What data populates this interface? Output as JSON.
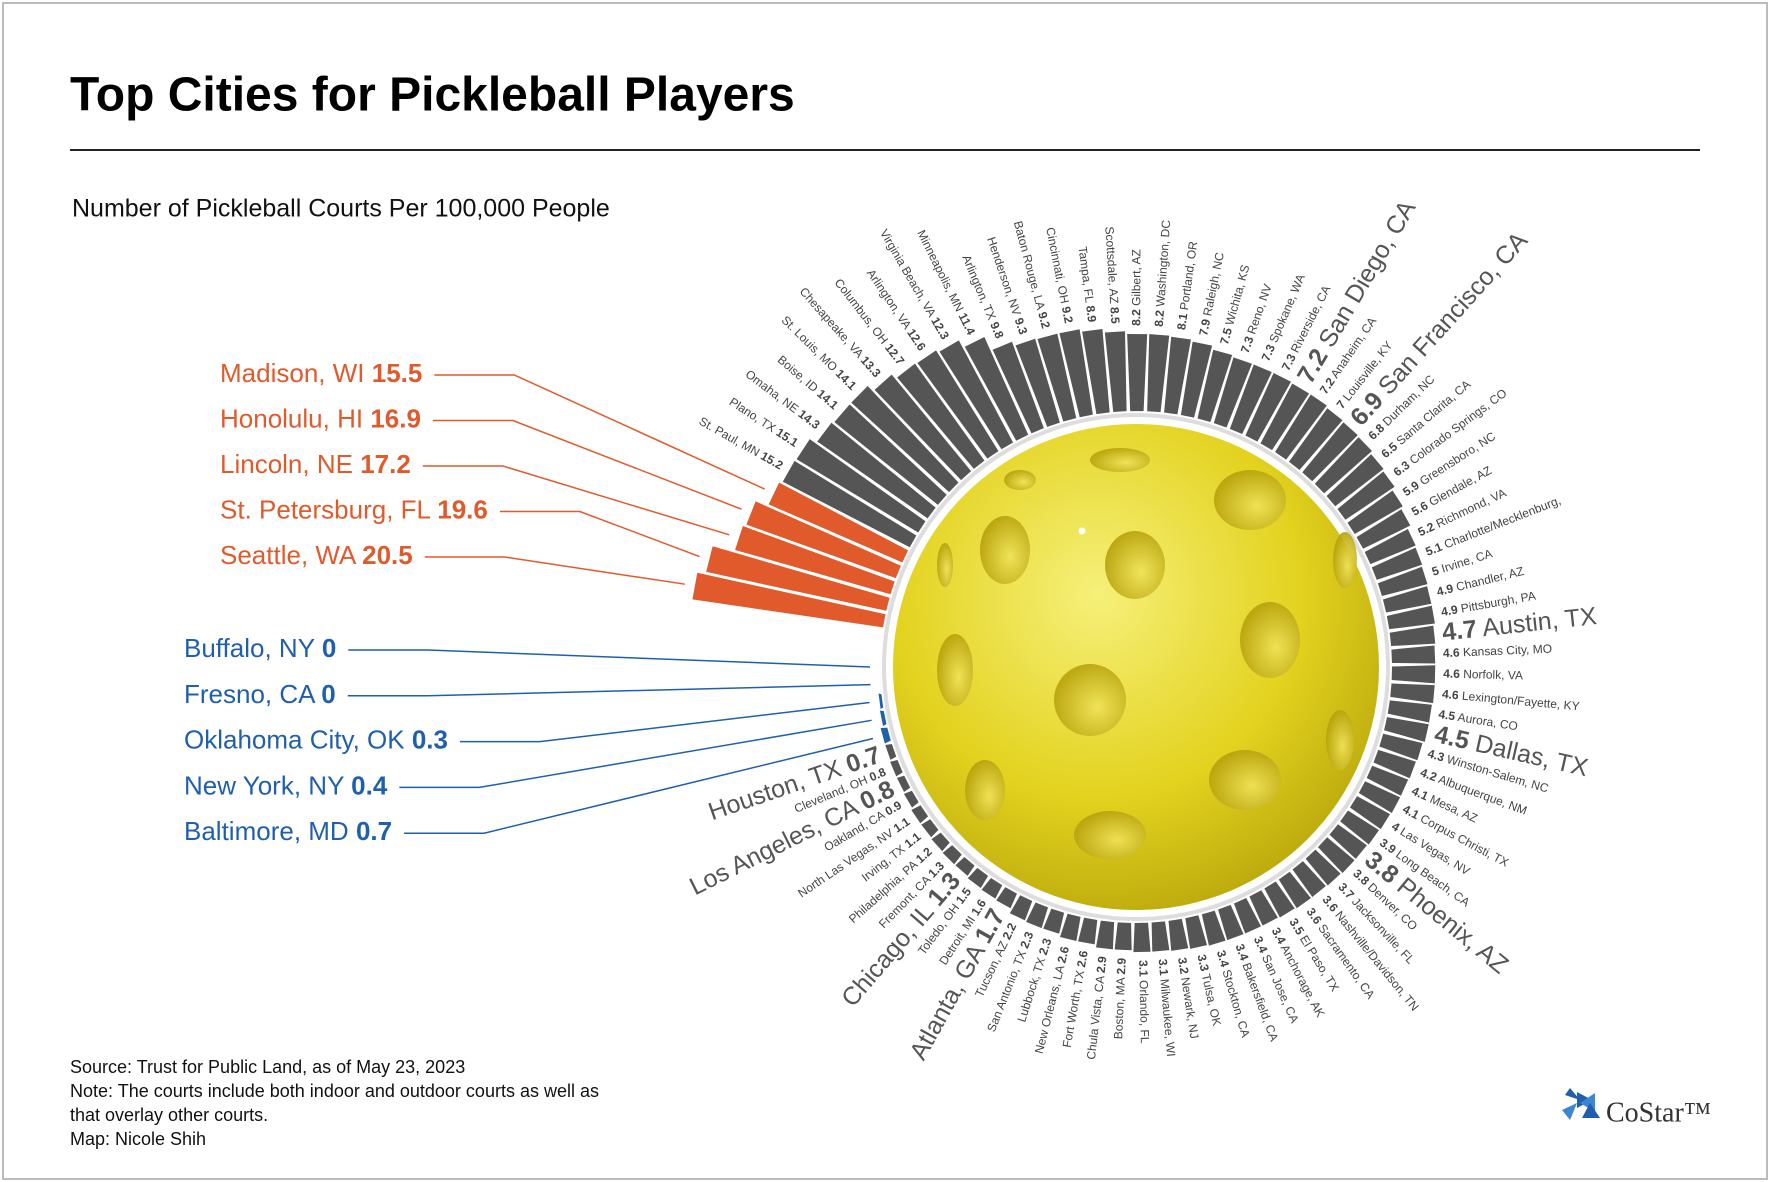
{
  "chart_data": {
    "type": "radial_bar",
    "title": "Top Cities for Pickleball Players",
    "subtitle": "Number of Pickleball Courts Per 100,000 People",
    "categories": [
      "Buffalo, NY",
      "Fresno, CA",
      "Oklahoma City, OK",
      "New York, NY",
      "Baltimore, MD",
      "Houston, TX",
      "Cleveland, OH",
      "Los Angeles, CA",
      "Oakland, CA",
      "North Las Vegas, NV",
      "Irving, TX",
      "Philadelphia, PA",
      "Fremont, CA",
      "Chicago, IL",
      "Toledo, OH",
      "Detroit, MI",
      "Atlanta, GA",
      "Tucson, AZ",
      "San Antonio, TX",
      "Lubbock, TX",
      "New Orleans, LA",
      "Fort Worth, TX",
      "Chula Vista, CA",
      "Boston, MA",
      "Orlando, FL",
      "Milwaukee, WI",
      "Newark, NJ",
      "Tulsa, OK",
      "Stockton, CA",
      "Bakersfield, CA",
      "San Jose, CA",
      "Anchorage, AK",
      "El Paso, TX",
      "Sacramento, CA",
      "Nashville/Davidson, TN",
      "Jacksonville, FL",
      "Denver, CO",
      "Phoenix, AZ",
      "Long Beach, CA",
      "Las Vegas, NV",
      "Corpus Christi, TX",
      "Mesa, AZ",
      "Albuquerque, NM",
      "Winston-Salem, NC",
      "Dallas, TX",
      "Aurora, CO",
      "Lexington/Fayette, KY",
      "Norfolk, VA",
      "Kansas City, MO",
      "Austin, TX",
      "Pittsburgh, PA",
      "Chandler, AZ",
      "Irvine, CA",
      "Charlotte/Mecklenburg,",
      "Richmond, VA",
      "Glendale, AZ",
      "Greensboro, NC",
      "Colorado Springs, CO",
      "Santa Clarita, CA",
      "Durham, NC",
      "San Francisco, CA",
      "Louisville, KY",
      "Anaheim, CA",
      "San Diego, CA",
      "Riverside, CA",
      "Spokane, WA",
      "Reno, NV",
      "Wichita, KS",
      "Raleigh, NC",
      "Portland, OR",
      "Washington, DC",
      "Gilbert, AZ",
      "Scottsdale, AZ",
      "Tampa, FL",
      "Cincinnati, OH",
      "Baton Rouge, LA",
      "Henderson, NV",
      "Arlington, TX",
      "Minneapolis, MN",
      "Virginia Beach, VA",
      "Arlington, VA",
      "Columbus, OH",
      "Chesapeake, VA",
      "St. Louis, MO",
      "Boise, ID",
      "Omaha, NE",
      "Plano, TX",
      "St. Paul, MN",
      "Madison, WI",
      "Honolulu, HI",
      "Lincoln, NE",
      "St. Petersburg, FL",
      "Seattle, WA"
    ],
    "values": [
      0,
      0,
      0.3,
      0.4,
      0.7,
      0.7,
      0.8,
      0.8,
      0.9,
      1.1,
      1.1,
      1.2,
      1.3,
      1.3,
      1.5,
      1.6,
      1.7,
      2.2,
      2.3,
      2.3,
      2.6,
      2.6,
      2.9,
      2.9,
      3.1,
      3.1,
      3.2,
      3.3,
      3.4,
      3.4,
      3.4,
      3.4,
      3.5,
      3.6,
      3.6,
      3.7,
      3.8,
      3.8,
      3.9,
      4,
      4.1,
      4.1,
      4.2,
      4.3,
      4.5,
      4.5,
      4.6,
      4.6,
      4.6,
      4.7,
      4.9,
      4.9,
      5,
      5.1,
      5.2,
      5.6,
      5.9,
      6.3,
      6.5,
      6.8,
      6.9,
      7,
      7.2,
      7.2,
      7.3,
      7.3,
      7.3,
      7.5,
      7.9,
      8.1,
      8.2,
      8.2,
      8.5,
      8.9,
      9.2,
      9.2,
      9.3,
      9.8,
      11.4,
      12.3,
      12.6,
      12.7,
      13.3,
      14.1,
      14.1,
      14.3,
      15.1,
      15.2,
      15.5,
      16.9,
      17.2,
      19.6,
      20.5
    ],
    "emphasized": [
      5,
      7,
      13,
      16,
      37,
      44,
      49,
      60,
      63
    ],
    "color": "#555555",
    "top_color": "#e05a2b",
    "bottom_color": "#1f5fad",
    "notes": [
      "Source: Trust for Public Land, as of May 23, 2023",
      "Note: The courts include both indoor and outdoor courts as well as",
      "that overlay other courts.",
      "Map: Nicole Shih"
    ],
    "logo": "CoStar™"
  }
}
